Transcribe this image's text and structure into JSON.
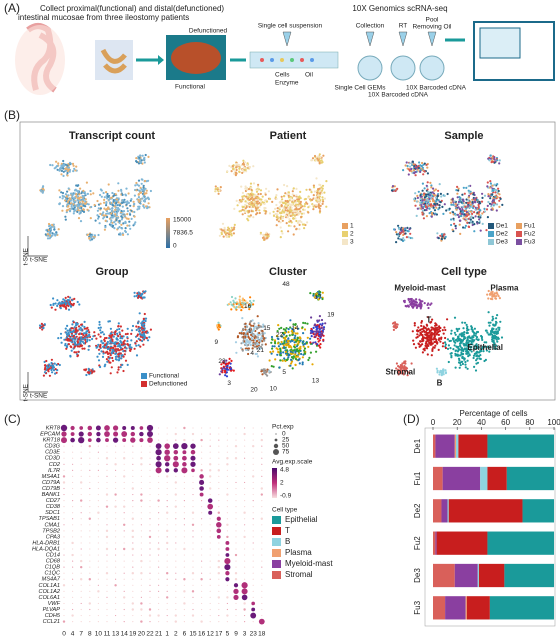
{
  "panel_labels": [
    "(A)",
    "(B)",
    "(C)",
    "(D)"
  ],
  "panel_a": {
    "title": "Collect proximal(functional) and distal(defunctioned)",
    "title2": "intestinal mucosae from three ileostomy patients",
    "defunctioned": "Defunctioned",
    "functional": "Functional",
    "suspension": "Single cell suspension",
    "cells": "Cells",
    "oil": "Oil",
    "enzyme": "Enzyme",
    "seq": "10X Genomics scRNA-seq",
    "collection": "Collection",
    "rt": "RT",
    "pool": "Pool",
    "removing": "Removing Oil",
    "gems": "Single Cell GEMs",
    "cdna1": "10X Barcoded cDNA",
    "cdna2": "10X Barcoded cDNA"
  },
  "panel_b": {
    "axis": "t-SNE",
    "plots": [
      {
        "title": "Transcript count",
        "legend": [
          "15000",
          "7836.5",
          "0"
        ]
      },
      {
        "title": "Patient",
        "legend": [
          "1",
          "2",
          "3"
        ],
        "colors": [
          "#e8a060",
          "#e8d070",
          "#f4e6c8"
        ]
      },
      {
        "title": "Sample",
        "legend": [
          "De1",
          "Fu1",
          "De2",
          "Fu2",
          "De3",
          "Fu3"
        ],
        "colors": [
          "#22577a",
          "#e8a060",
          "#4aa3c8",
          "#d9534f",
          "#8fc7d6",
          "#7b4fa0"
        ]
      },
      {
        "title": "Group",
        "legend": [
          "Functional",
          "Defunctioned"
        ],
        "colors": [
          "#3a8fc8",
          "#d32f2f"
        ]
      },
      {
        "title": "Cluster",
        "labels": [
          "48",
          "17",
          "9",
          "16",
          "15",
          "22",
          "14",
          "19",
          "1",
          "23",
          "21",
          "4",
          "3",
          "20",
          "10",
          "5",
          "13"
        ]
      },
      {
        "title": "Cell type",
        "labels": [
          "Myeloid-mast",
          "Plasma",
          "T",
          "Epithelial",
          "Stromal",
          "B"
        ]
      }
    ]
  },
  "panel_c": {
    "genes": [
      "KRT8",
      "EPCAM",
      "KRT18",
      "CD3G",
      "CD3E",
      "CD3D",
      "CD2",
      "IL7R",
      "MS4A1",
      "CD79A",
      "CD79B",
      "BANK1",
      "CD27",
      "CD38",
      "SDC1",
      "TPSAB1",
      "CMA1",
      "TPSB2",
      "CPA3",
      "HLA-DRB1",
      "HLA-DQA1",
      "CD14",
      "CD68",
      "C1QB",
      "C1QC",
      "MS4A7",
      "COL1A1",
      "COL1A2",
      "COL6A1",
      "VWF",
      "PLVAP",
      "CDH5",
      "CCL21"
    ],
    "clusters": [
      "0",
      "4",
      "7",
      "8",
      "10",
      "11",
      "13",
      "14",
      "19",
      "20",
      "22",
      "21",
      "1",
      "2",
      "6",
      "15",
      "16",
      "12",
      "17",
      "5",
      "9",
      "3",
      "23",
      "18"
    ],
    "pct_title": "Pct.exp",
    "pct_ticks": [
      "0",
      "25",
      "50",
      "75"
    ],
    "avg_title": "Avg.exp.scale",
    "avg_ticks": [
      "4.8",
      "2",
      "-0.9"
    ],
    "celltype_title": "Cell type"
  },
  "chart_data": {
    "type": "bar",
    "orientation": "horizontal",
    "stacked": true,
    "x_label": "Percentage of cells",
    "categories": [
      "De1",
      "Fu1",
      "De2",
      "Fu2",
      "De3",
      "Fu3"
    ],
    "xlim": [
      0,
      100
    ],
    "xticks": [
      0,
      20,
      40,
      60,
      80,
      100
    ],
    "series": [
      {
        "name": "Stromal",
        "color": "#d9605a",
        "values": [
          2,
          8,
          7,
          2,
          18,
          10
        ]
      },
      {
        "name": "Myeloid-mast",
        "color": "#8a3fa0",
        "values": [
          16,
          31,
          5,
          1,
          19,
          17
        ]
      },
      {
        "name": "Plasma",
        "color": "#f0a070",
        "values": [
          1,
          0,
          0,
          0,
          0,
          1
        ]
      },
      {
        "name": "B",
        "color": "#8fd3e0",
        "values": [
          2,
          6,
          1,
          0,
          1,
          0
        ]
      },
      {
        "name": "T",
        "color": "#c81e1e",
        "values": [
          24,
          16,
          61,
          42,
          21,
          19
        ]
      },
      {
        "name": "Epithelial",
        "color": "#1a9a9a",
        "values": [
          55,
          39,
          26,
          55,
          41,
          53
        ]
      }
    ]
  }
}
